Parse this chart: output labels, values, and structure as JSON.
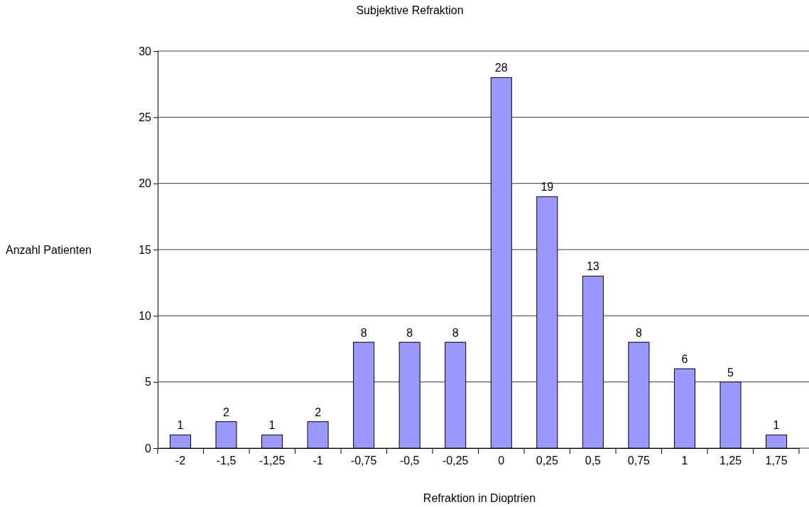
{
  "chart_data": {
    "type": "bar",
    "title": "Subjektive Refraktion",
    "xlabel": "Refraktion in Dioptrien",
    "ylabel": "Anzahl Patienten",
    "categories": [
      "-2",
      "-1,5",
      "-1,25",
      "-1",
      "-0,75",
      "-0,5",
      "-0,25",
      "0",
      "0,25",
      "0,5",
      "0,75",
      "1",
      "1,25",
      "1,75"
    ],
    "values": [
      1,
      2,
      1,
      2,
      8,
      8,
      8,
      28,
      19,
      13,
      8,
      6,
      5,
      1
    ],
    "color": "#9999ff",
    "ylim": [
      0,
      30
    ],
    "yticks": [
      0,
      5,
      10,
      15,
      20,
      25,
      30
    ],
    "grid": "y",
    "data_labels": true
  }
}
